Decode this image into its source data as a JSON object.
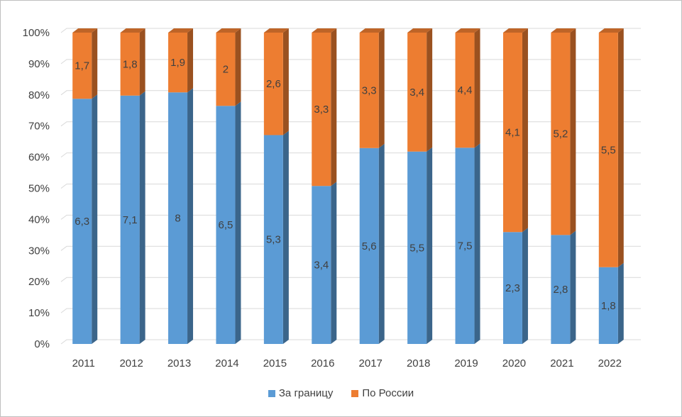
{
  "chart_data": {
    "type": "bar",
    "stacked": "percent",
    "categories": [
      "2011",
      "2012",
      "2013",
      "2014",
      "2015",
      "2016",
      "2017",
      "2018",
      "2019",
      "2020",
      "2021",
      "2022"
    ],
    "series": [
      {
        "name": "За границу",
        "color": "#5b9bd5",
        "values": [
          6.3,
          7.1,
          8,
          6.5,
          5.3,
          3.4,
          5.6,
          5.5,
          7.5,
          2.3,
          2.8,
          1.8
        ],
        "labels": [
          "6,3",
          "7,1",
          "8",
          "6,5",
          "5,3",
          "3,4",
          "5,6",
          "5,5",
          "7,5",
          "2,3",
          "2,8",
          "1,8"
        ]
      },
      {
        "name": "По России",
        "color": "#ed7d31",
        "values": [
          1.7,
          1.8,
          1.9,
          2,
          2.6,
          3.3,
          3.3,
          3.4,
          4.4,
          4.1,
          5.2,
          5.5
        ],
        "labels": [
          "1,7",
          "1,8",
          "1,9",
          "2",
          "2,6",
          "3,3",
          "3,3",
          "3,4",
          "4,4",
          "4,1",
          "5,2",
          "5,5"
        ]
      }
    ],
    "y_ticks": [
      "0%",
      "10%",
      "20%",
      "30%",
      "40%",
      "50%",
      "60%",
      "70%",
      "80%",
      "90%",
      "100%"
    ],
    "ylim": [
      0,
      100
    ],
    "grid": true,
    "legend": "bottom"
  }
}
